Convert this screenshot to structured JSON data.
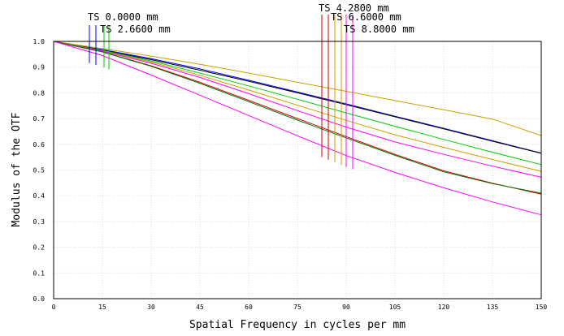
{
  "chart_data": {
    "type": "line",
    "xlabel": "Spatial Frequency in cycles per mm",
    "ylabel": "Modulus of the OTF",
    "xlim": [
      0,
      150
    ],
    "ylim": [
      0,
      1
    ],
    "x_ticks": [
      "0",
      "15",
      "30",
      "45",
      "60",
      "75",
      "90",
      "105",
      "120",
      "135",
      "150"
    ],
    "y_ticks": [
      "0.0",
      "0.1",
      "0.2",
      "0.3",
      "0.4",
      "0.5",
      "0.6",
      "0.7",
      "0.8",
      "0.9",
      "1.0"
    ],
    "grid": true,
    "x": [
      0,
      15,
      30,
      45,
      60,
      75,
      90,
      105,
      120,
      135,
      150
    ],
    "legend_labels": [
      {
        "text": "TS 0.0000 mm"
      },
      {
        "text": "TS 2.6600 mm"
      },
      {
        "text": "TS 4.2800 mm"
      },
      {
        "text": "TS 6.6000 mm"
      },
      {
        "text": "TS 8.8000 mm"
      }
    ],
    "legend_markers": [
      {
        "color": "#0000ff",
        "x": 11
      },
      {
        "color": "#0000ff",
        "x": 13
      },
      {
        "color": "#00cc00",
        "x": 15.5
      },
      {
        "color": "#00cc00",
        "x": 17
      },
      {
        "color": "#cc0000",
        "x": 82.5
      },
      {
        "color": "#cc0000",
        "x": 84.5
      },
      {
        "color": "#c8a000",
        "x": 86.5
      },
      {
        "color": "#c8a000",
        "x": 88.5
      },
      {
        "color": "#ff00ff",
        "x": 90
      },
      {
        "color": "#ff00ff",
        "x": 92
      }
    ],
    "series": [
      {
        "color": "#0000ff",
        "values": [
          1.0,
          0.968,
          0.933,
          0.893,
          0.849,
          0.803,
          0.757,
          0.709,
          0.662,
          0.614,
          0.566
        ]
      },
      {
        "color": "#000000",
        "values": [
          1.0,
          0.966,
          0.929,
          0.888,
          0.845,
          0.8,
          0.754,
          0.707,
          0.66,
          0.612,
          0.565
        ]
      },
      {
        "color": "#c8a000",
        "values": [
          1.0,
          0.972,
          0.943,
          0.911,
          0.877,
          0.841,
          0.806,
          0.77,
          0.734,
          0.698,
          0.634
        ]
      },
      {
        "color": "#00cc00",
        "values": [
          1.0,
          0.965,
          0.924,
          0.877,
          0.827,
          0.775,
          0.722,
          0.67,
          0.619,
          0.569,
          0.521
        ]
      },
      {
        "color": "#c8a000",
        "values": [
          1.0,
          0.963,
          0.92,
          0.868,
          0.811,
          0.752,
          0.693,
          0.637,
          0.588,
          0.541,
          0.495
        ]
      },
      {
        "color": "#ff00ff",
        "values": [
          1.0,
          0.962,
          0.915,
          0.86,
          0.797,
          0.731,
          0.667,
          0.609,
          0.561,
          0.515,
          0.472
        ]
      },
      {
        "color": "#cc0000",
        "values": [
          1.0,
          0.96,
          0.905,
          0.841,
          0.771,
          0.7,
          0.63,
          0.561,
          0.497,
          0.449,
          0.406
        ]
      },
      {
        "color": "#007700",
        "values": [
          1.0,
          0.959,
          0.903,
          0.837,
          0.766,
          0.694,
          0.625,
          0.557,
          0.493,
          0.447,
          0.41
        ]
      },
      {
        "color": "#ff00ff",
        "values": [
          1.0,
          0.945,
          0.869,
          0.791,
          0.712,
          0.633,
          0.556,
          0.491,
          0.431,
          0.376,
          0.326
        ]
      }
    ]
  }
}
